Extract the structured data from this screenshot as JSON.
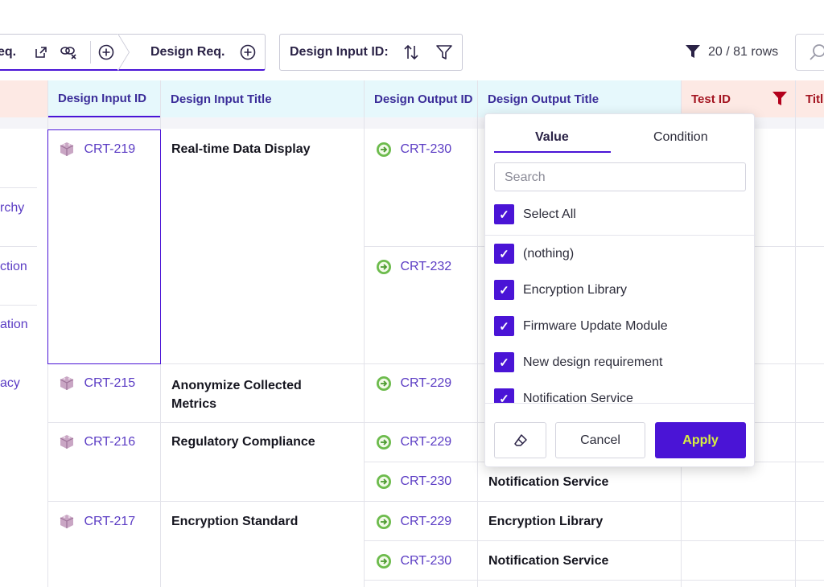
{
  "toolbar": {
    "left_chip_text": "eq.",
    "design_req_label": "Design Req.",
    "design_input_id_label": "Design Input ID:",
    "row_count": "20 / 81 rows"
  },
  "columns": {
    "design_input_id": "Design Input ID",
    "design_input_title": "Design Input Title",
    "design_output_id": "Design Output ID",
    "design_output_title": "Design Output Title",
    "test_id": "Test ID",
    "title_partial": "Titl"
  },
  "left_col_fragments": [
    "rchy",
    "ction",
    "ation",
    "acy"
  ],
  "rows": [
    {
      "id": "CRT-219",
      "title": "Real-time Data Display",
      "outputs": [
        {
          "id": "CRT-230",
          "title": ""
        },
        {
          "id": "CRT-232",
          "title": ""
        }
      ]
    },
    {
      "id": "CRT-215",
      "title": "Anonymize Collected Metrics",
      "outputs": [
        {
          "id": "CRT-229",
          "title": ""
        }
      ]
    },
    {
      "id": "CRT-216",
      "title": "Regulatory Compliance",
      "outputs": [
        {
          "id": "CRT-229",
          "title": ""
        },
        {
          "id": "CRT-230",
          "title": "Notification Service"
        }
      ]
    },
    {
      "id": "CRT-217",
      "title": "Encryption Standard",
      "outputs": [
        {
          "id": "CRT-229",
          "title": "Encryption Library"
        },
        {
          "id": "CRT-230",
          "title": "Notification Service"
        }
      ]
    }
  ],
  "filter_popup": {
    "tab_value": "Value",
    "tab_condition": "Condition",
    "search_placeholder": "Search",
    "select_all": "Select All",
    "options": [
      "(nothing)",
      "Encryption Library",
      "Firmware Update Module",
      "New design requirement",
      "Notification Service"
    ],
    "cancel_label": "Cancel",
    "apply_label": "Apply"
  },
  "colors": {
    "accent": "#4a14d6",
    "apply_text": "#d9f23f",
    "link": "#5b3cc4",
    "header_cyan": "#e6f8fc",
    "header_pink": "#fde9e4",
    "filter_red": "#b3001b"
  }
}
